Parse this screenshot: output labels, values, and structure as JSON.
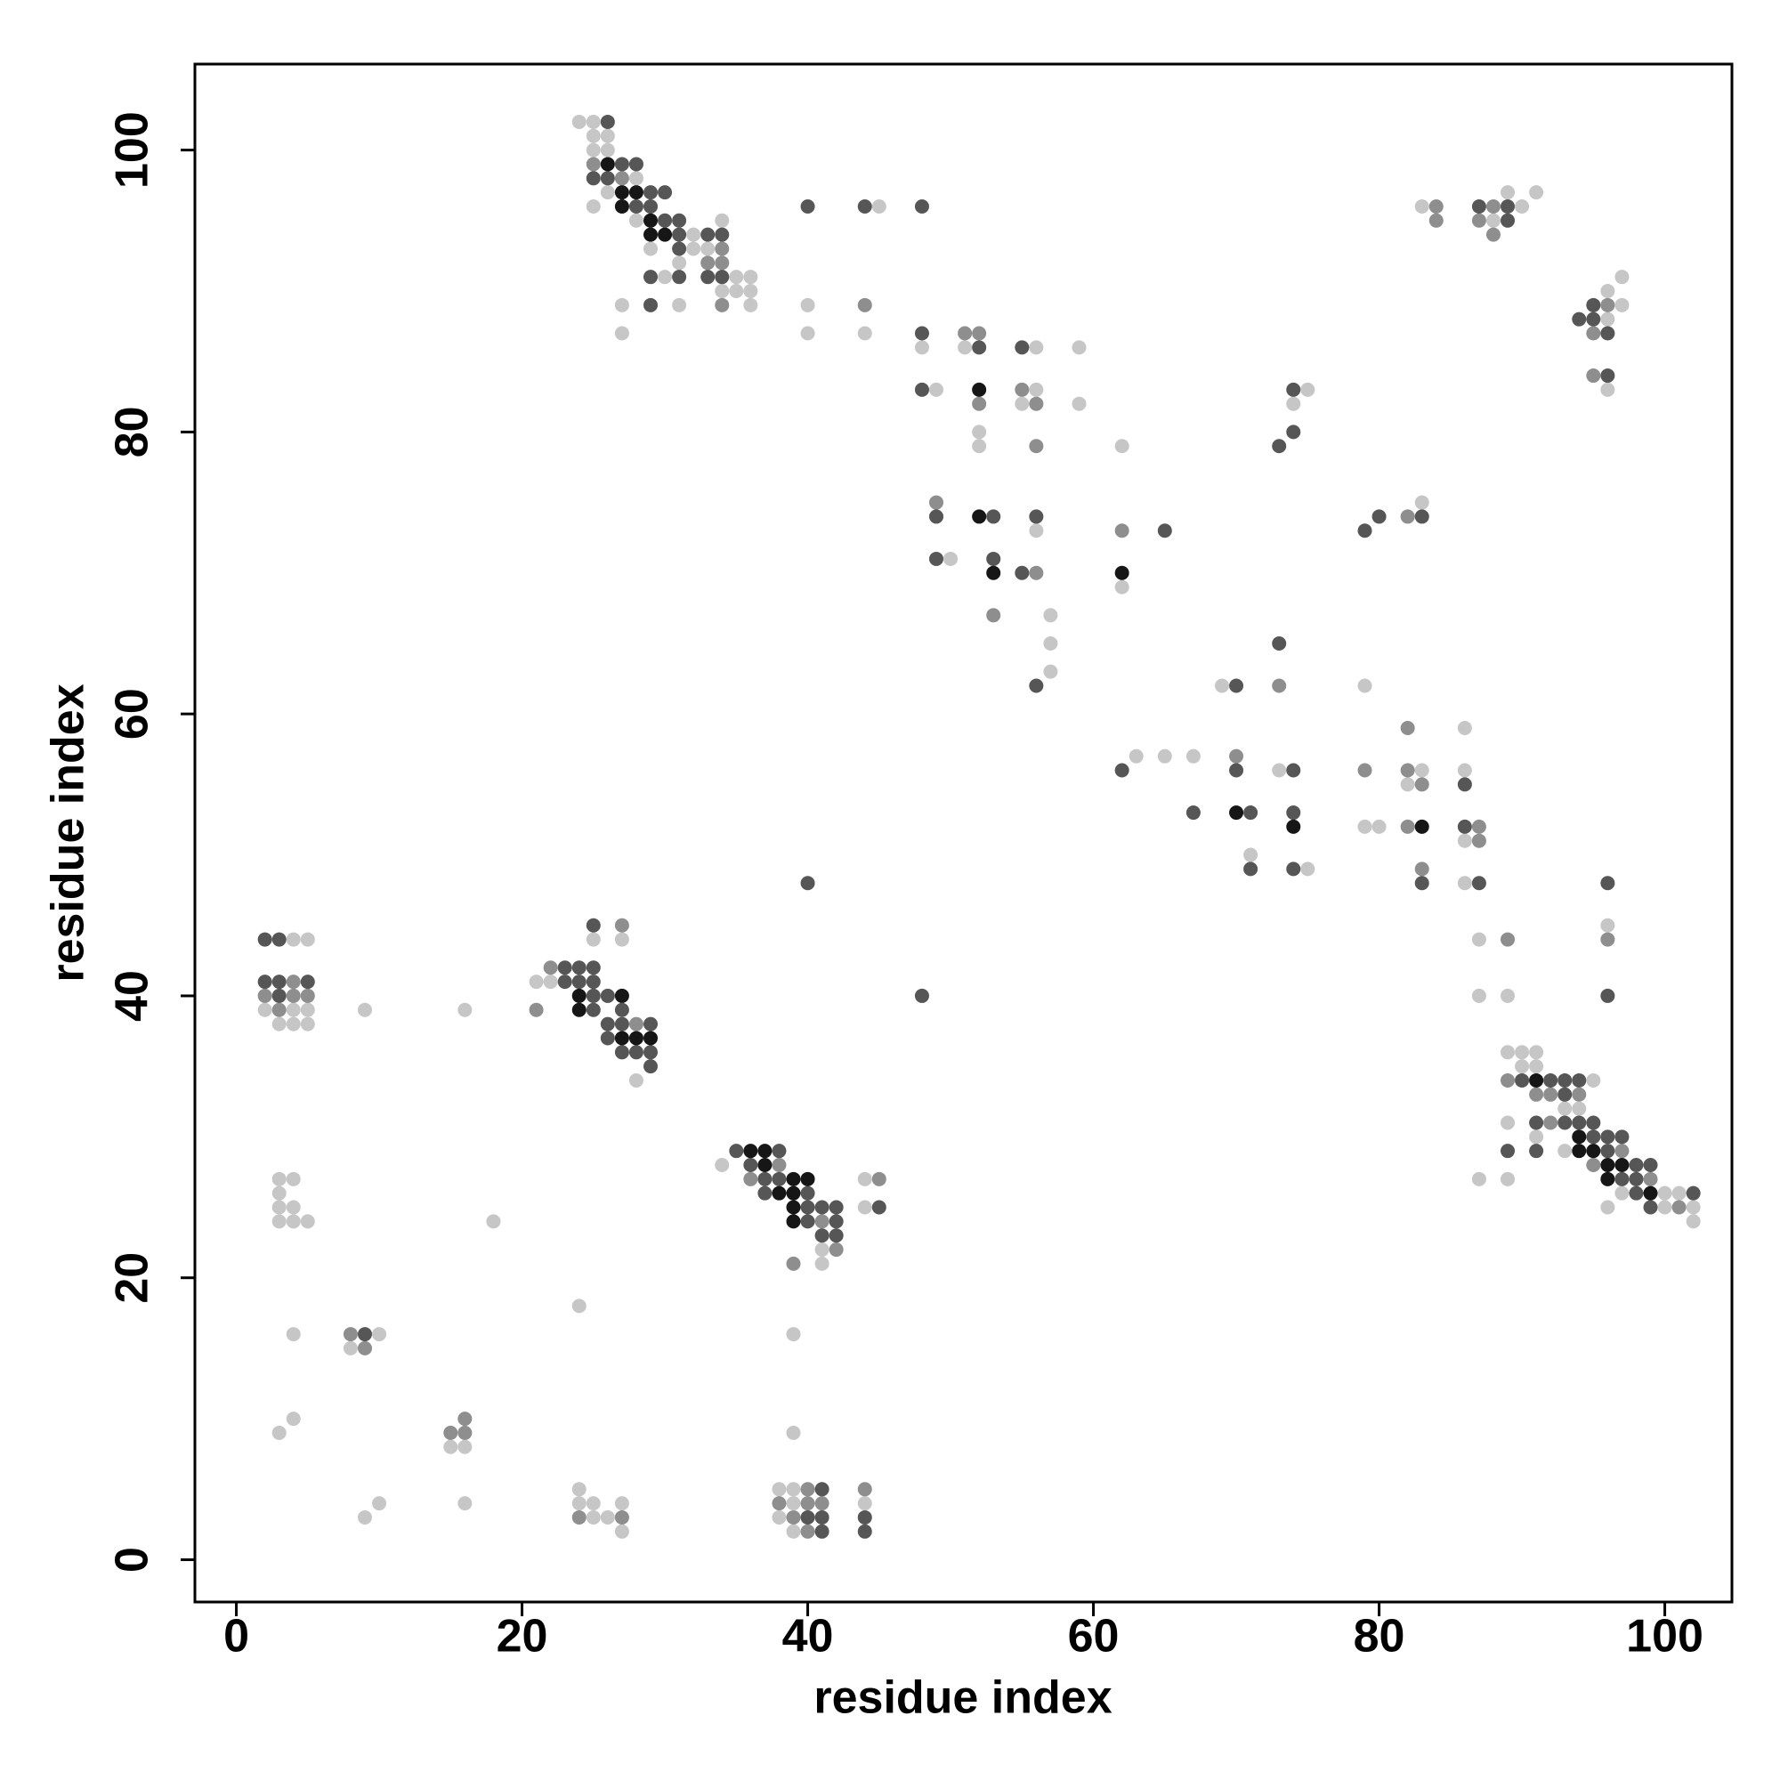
{
  "chart_data": {
    "type": "scatter",
    "xlabel": "residue index",
    "ylabel": "residue index",
    "xlim": [
      -2.9,
      104.7
    ],
    "ylim": [
      -3,
      106.1
    ],
    "xticks": [
      0,
      20,
      40,
      60,
      80,
      100
    ],
    "yticks": [
      0,
      20,
      40,
      60,
      80,
      100
    ],
    "series": [
      {
        "color": "#c6c6c6",
        "x": [
          24,
          25,
          25,
          26,
          25,
          26,
          28,
          26,
          25,
          45,
          28,
          34,
          32,
          29,
          32,
          33,
          31,
          30,
          35,
          36,
          34,
          35,
          36,
          27,
          31,
          36,
          40,
          27,
          40,
          44,
          48,
          51,
          56,
          59,
          49,
          56,
          75,
          55,
          59,
          74,
          52,
          52,
          62,
          83,
          56,
          50,
          62,
          57,
          57,
          57,
          69,
          79,
          86,
          63,
          65,
          67,
          73,
          83,
          86,
          82,
          79,
          80,
          86,
          71,
          75,
          86,
          96,
          87,
          87,
          89,
          89,
          91,
          83,
          90,
          88,
          97,
          96,
          97,
          96,
          96,
          89,
          90,
          91,
          90,
          91,
          95,
          93,
          94,
          89,
          91,
          93,
          87,
          89,
          97,
          100,
          101,
          96,
          100,
          102,
          102,
          4,
          5,
          25,
          27,
          21,
          22,
          2,
          4,
          5,
          9,
          16,
          3,
          4,
          5,
          28,
          34,
          3,
          4,
          44,
          3,
          3,
          4,
          44,
          3,
          4,
          5,
          18,
          41,
          41,
          24,
          4,
          10,
          39,
          8,
          4,
          3,
          39,
          15,
          16,
          24,
          38,
          39,
          10,
          16,
          24,
          25,
          27,
          39,
          44,
          9,
          25,
          26,
          38,
          27,
          39
        ],
        "y": [
          102,
          102,
          101,
          101,
          100,
          100,
          98,
          97,
          96,
          96,
          95,
          95,
          94,
          93,
          93,
          93,
          92,
          91,
          91,
          91,
          90,
          90,
          90,
          89,
          89,
          89,
          89,
          87,
          87,
          87,
          86,
          86,
          86,
          86,
          83,
          83,
          83,
          82,
          82,
          82,
          80,
          79,
          79,
          75,
          73,
          71,
          69,
          67,
          65,
          63,
          62,
          62,
          59,
          57,
          57,
          57,
          56,
          56,
          56,
          55,
          52,
          52,
          51,
          50,
          49,
          48,
          45,
          44,
          40,
          40,
          97,
          97,
          96,
          96,
          95,
          91,
          90,
          89,
          88,
          83,
          36,
          36,
          36,
          35,
          35,
          34,
          32,
          32,
          31,
          30,
          29,
          27,
          27,
          26,
          26,
          26,
          25,
          25,
          25,
          24,
          44,
          44,
          44,
          44,
          41,
          41,
          39,
          39,
          39,
          39,
          39,
          38,
          38,
          38,
          34,
          28,
          27,
          27,
          27,
          26,
          25,
          25,
          25,
          24,
          24,
          24,
          24,
          22,
          21,
          18,
          16,
          16,
          16,
          15,
          10,
          9,
          9,
          8,
          8,
          5,
          5,
          5,
          4,
          4,
          4,
          4,
          4,
          4,
          4,
          3,
          3,
          3,
          3,
          2,
          2
        ]
      },
      {
        "color": "#8e8e8e",
        "x": [
          25,
          27,
          34,
          33,
          34,
          34,
          44,
          51,
          52,
          55,
          52,
          56,
          56,
          49,
          82,
          62,
          56,
          53,
          73,
          82,
          70,
          79,
          82,
          83,
          82,
          87,
          87,
          83,
          89,
          96,
          84,
          88,
          84,
          87,
          88,
          96,
          95,
          95,
          89,
          91,
          92,
          94,
          92,
          97,
          95,
          99,
          101,
          27,
          22,
          4,
          2,
          4,
          5,
          3,
          21,
          28,
          38,
          36,
          45,
          41,
          42,
          39,
          8,
          9,
          16,
          15,
          16,
          40,
          44,
          38,
          40,
          41,
          24,
          27,
          39,
          40
        ],
        "y": [
          99,
          98,
          93,
          92,
          92,
          89,
          89,
          87,
          87,
          83,
          82,
          82,
          79,
          75,
          74,
          73,
          70,
          67,
          62,
          59,
          57,
          56,
          56,
          55,
          52,
          52,
          51,
          49,
          44,
          44,
          96,
          96,
          95,
          95,
          94,
          89,
          87,
          84,
          34,
          33,
          33,
          33,
          31,
          29,
          28,
          27,
          25,
          45,
          42,
          41,
          40,
          40,
          40,
          39,
          39,
          38,
          28,
          27,
          27,
          24,
          22,
          21,
          16,
          15,
          10,
          9,
          9,
          5,
          5,
          4,
          4,
          4,
          3,
          3,
          3,
          2
        ]
      },
      {
        "color": "#565656",
        "x": [
          26,
          25,
          26,
          27,
          28,
          29,
          30,
          28,
          29,
          40,
          44,
          48,
          30,
          31,
          31,
          33,
          34,
          31,
          29,
          31,
          33,
          34,
          29,
          48,
          52,
          55,
          48,
          74,
          74,
          73,
          49,
          53,
          56,
          80,
          83,
          65,
          79,
          49,
          53,
          55,
          73,
          56,
          70,
          62,
          70,
          74,
          86,
          67,
          71,
          74,
          86,
          71,
          74,
          40,
          83,
          87,
          96,
          48,
          96,
          87,
          89,
          89,
          95,
          94,
          95,
          96,
          96,
          90,
          92,
          93,
          94,
          93,
          91,
          93,
          94,
          95,
          95,
          96,
          97,
          89,
          91,
          96,
          98,
          99,
          97,
          98,
          98,
          102,
          99,
          25,
          2,
          3,
          23,
          24,
          25,
          2,
          3,
          5,
          23,
          24,
          25,
          3,
          25,
          26,
          25,
          27,
          26,
          27,
          29,
          26,
          27,
          28,
          29,
          29,
          35,
          38,
          36,
          37,
          38,
          37,
          40,
          40,
          41,
          42,
          45,
          40,
          42,
          41,
          42,
          9,
          41,
          40,
          41,
          44,
          41,
          44
        ],
        "y": [
          102,
          98,
          98,
          99,
          99,
          97,
          97,
          96,
          96,
          96,
          96,
          96,
          95,
          95,
          94,
          94,
          94,
          93,
          91,
          91,
          91,
          91,
          89,
          87,
          86,
          86,
          83,
          83,
          80,
          79,
          74,
          74,
          74,
          74,
          74,
          73,
          73,
          71,
          71,
          70,
          65,
          62,
          62,
          56,
          56,
          56,
          55,
          53,
          53,
          53,
          52,
          49,
          49,
          48,
          48,
          48,
          48,
          40,
          40,
          96,
          96,
          95,
          89,
          88,
          88,
          87,
          84,
          34,
          34,
          34,
          34,
          33,
          31,
          31,
          31,
          31,
          30,
          30,
          30,
          29,
          29,
          29,
          28,
          28,
          27,
          27,
          26,
          26,
          25,
          45,
          44,
          44,
          42,
          42,
          42,
          41,
          41,
          41,
          41,
          41,
          41,
          40,
          40,
          40,
          39,
          39,
          38,
          38,
          38,
          37,
          36,
          36,
          36,
          35,
          29,
          29,
          28,
          27,
          27,
          26,
          26,
          25,
          25,
          25,
          25,
          24,
          24,
          23,
          23,
          16,
          5,
          3,
          3,
          3,
          2,
          2
        ]
      },
      {
        "color": "#161616",
        "x": [
          26,
          27,
          28,
          27,
          29,
          29,
          30,
          52,
          52,
          53,
          62,
          70,
          74,
          83,
          91,
          94,
          94,
          95,
          96,
          97,
          96,
          99,
          24,
          27,
          24,
          27,
          28,
          29,
          36,
          37,
          37,
          39,
          40,
          38,
          39,
          39,
          39
        ],
        "y": [
          99,
          97,
          97,
          96,
          95,
          94,
          94,
          83,
          74,
          70,
          70,
          53,
          52,
          52,
          34,
          30,
          29,
          29,
          28,
          28,
          27,
          26,
          40,
          40,
          39,
          37,
          37,
          37,
          29,
          29,
          28,
          27,
          27,
          26,
          26,
          25,
          24
        ]
      }
    ]
  }
}
